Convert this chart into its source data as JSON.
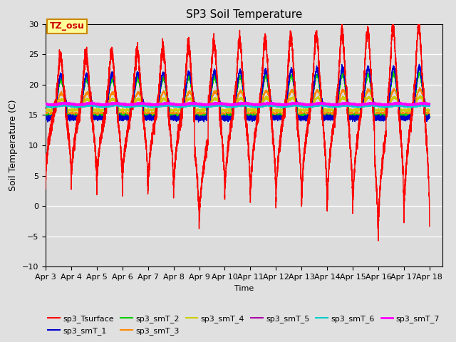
{
  "title": "SP3 Soil Temperature",
  "ylabel": "Soil Temperature (C)",
  "xlabel": "Time",
  "annotation": "TZ_osu",
  "ylim": [
    -10,
    30
  ],
  "x_tick_labels": [
    "Apr 3",
    "Apr 4",
    "Apr 5",
    "Apr 6",
    "Apr 7",
    "Apr 8",
    "Apr 9",
    "Apr 10",
    "Apr 11",
    "Apr 12",
    "Apr 13",
    "Apr 14",
    "Apr 15",
    "Apr 16",
    "Apr 17",
    "Apr 18"
  ],
  "series_colors": {
    "sp3_Tsurface": "#FF0000",
    "sp3_smT_1": "#0000CC",
    "sp3_smT_2": "#00CC00",
    "sp3_smT_3": "#FF8800",
    "sp3_smT_4": "#CCCC00",
    "sp3_smT_5": "#AA00AA",
    "sp3_smT_6": "#00CCCC",
    "sp3_smT_7": "#FF00FF"
  },
  "series_lw": {
    "sp3_Tsurface": 1.0,
    "sp3_smT_1": 1.0,
    "sp3_smT_2": 1.0,
    "sp3_smT_3": 1.0,
    "sp3_smT_4": 1.0,
    "sp3_smT_5": 1.5,
    "sp3_smT_6": 1.5,
    "sp3_smT_7": 1.8
  },
  "bg_color": "#E0E0E0",
  "plot_bg_color": "#DCDCDC",
  "annotation_bg": "#FFFF99",
  "annotation_border": "#CC8800",
  "grid_color": "#FFFFFF",
  "yticks": [
    -10,
    -5,
    0,
    5,
    10,
    15,
    20,
    25,
    30
  ]
}
